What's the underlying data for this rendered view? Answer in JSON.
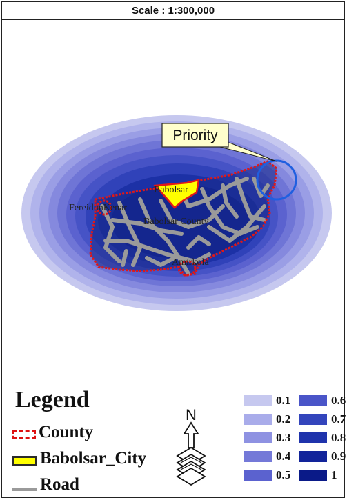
{
  "scale": {
    "text": "Scale : 1:300,000"
  },
  "map": {
    "callout": "Priority",
    "places": {
      "babolsar": "Babolsar",
      "fereidunkenar": "FereidunKenar",
      "babolsar_county": "Babolsar County",
      "amirkola": "Amirkola"
    },
    "colors": {
      "county_border": "#e01818",
      "city_fill": "#ffff00",
      "road": "#9a9a9a",
      "priority_circle": "#1f5fe0",
      "callout_fill": "#ffffcc"
    }
  },
  "legend": {
    "title": "Legend",
    "items": [
      {
        "label": "County",
        "symbol": "county"
      },
      {
        "label": "Babolsar_City",
        "symbol": "city"
      },
      {
        "label": "Road",
        "symbol": "road"
      }
    ],
    "north_label": "N",
    "classes": [
      {
        "value": "0.1",
        "color": "#c6c8ef"
      },
      {
        "value": "0.2",
        "color": "#a9acea"
      },
      {
        "value": "0.3",
        "color": "#8e92e2"
      },
      {
        "value": "0.4",
        "color": "#7479d8"
      },
      {
        "value": "0.5",
        "color": "#5b62cf"
      },
      {
        "value": "0.6",
        "color": "#4a55c8"
      },
      {
        "value": "0.7",
        "color": "#3345bc"
      },
      {
        "value": "0.8",
        "color": "#1f33ac"
      },
      {
        "value": "0.9",
        "color": "#12249a"
      },
      {
        "value": "1",
        "color": "#0a1a88"
      }
    ]
  }
}
